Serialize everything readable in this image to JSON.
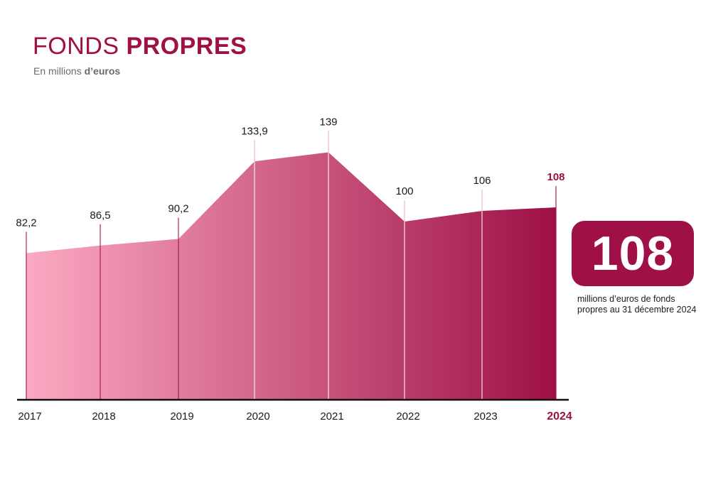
{
  "header": {
    "title_light": "FONDS",
    "title_bold": "PROPRES",
    "subtitle_light": "En millions",
    "subtitle_bold": "d’euros"
  },
  "callout": {
    "value": "108",
    "text": "millions d’euros de fonds propres au 31 décembre 2024"
  },
  "colors": {
    "brand": "#9e1046",
    "gradient_start": "#fca9c2",
    "gradient_end": "#9e1046",
    "axis": "#111111"
  },
  "chart_data": {
    "type": "area",
    "categories": [
      "2017",
      "2018",
      "2019",
      "2020",
      "2021",
      "2022",
      "2023",
      "2024"
    ],
    "values": [
      82.2,
      86.5,
      90.2,
      133.9,
      139,
      100,
      106,
      108
    ],
    "data_labels": [
      "82,2",
      "86,5",
      "90,2",
      "133,9",
      "139",
      "100",
      "106",
      "108"
    ],
    "highlight_category": "2024",
    "ylim": [
      0,
      150
    ],
    "grid": false,
    "legend": "none"
  }
}
